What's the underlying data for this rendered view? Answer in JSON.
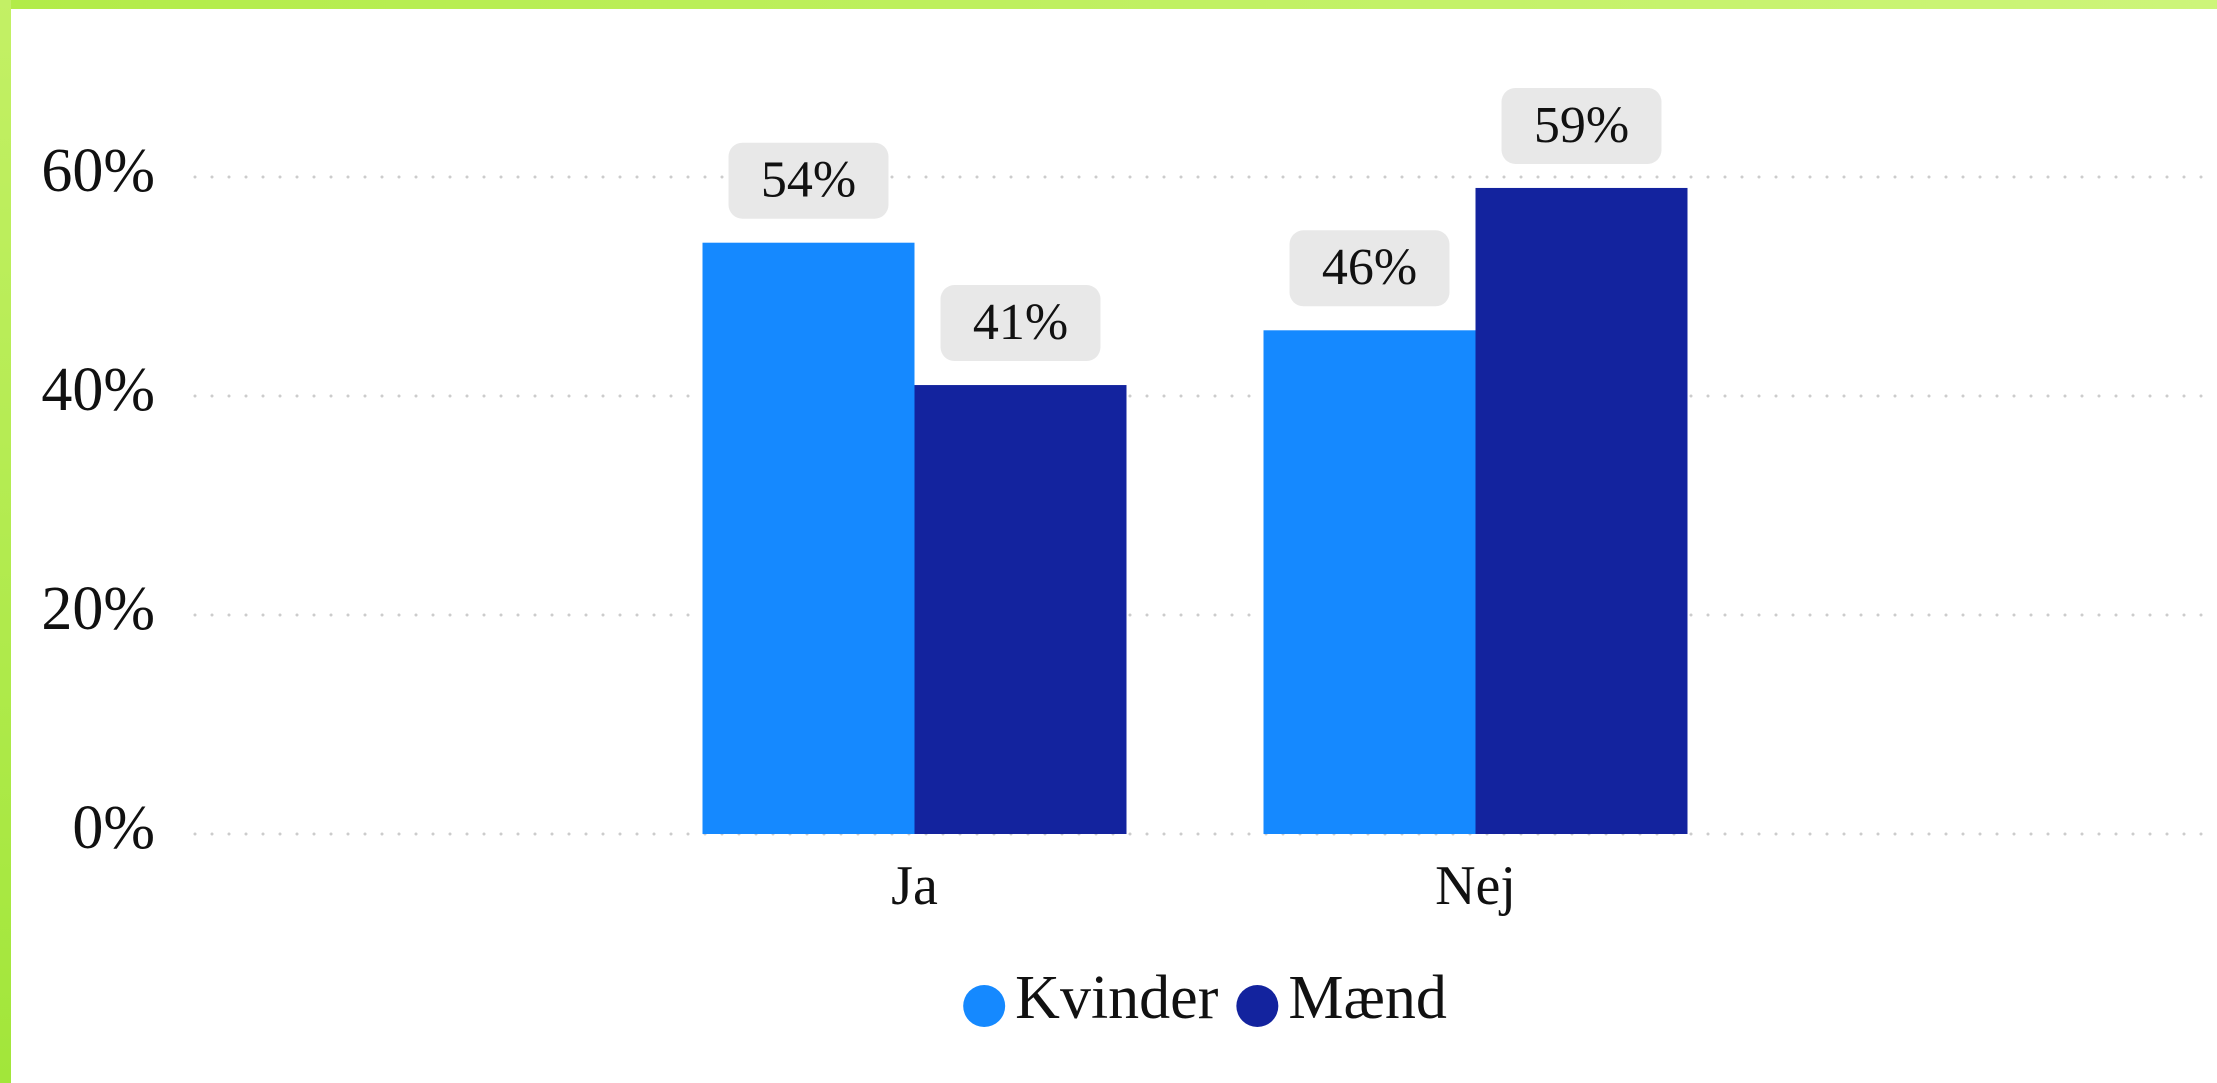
{
  "chart_data": {
    "type": "bar",
    "categories": [
      "Ja",
      "Nej"
    ],
    "series": [
      {
        "name": "Kvinder",
        "color": "#1589ff",
        "values": [
          54,
          46
        ],
        "value_labels": [
          "54%",
          "46%"
        ]
      },
      {
        "name": "Mænd",
        "color": "#13239e",
        "values": [
          41,
          59
        ],
        "value_labels": [
          "41%",
          "59%"
        ]
      }
    ],
    "ylim": [
      0,
      60
    ],
    "yticks": [
      {
        "value": 0,
        "label": "0%"
      },
      {
        "value": 20,
        "label": "20%"
      },
      {
        "value": 40,
        "label": "40%"
      },
      {
        "value": 60,
        "label": "60%"
      }
    ],
    "grid": true,
    "legend": "bottom"
  }
}
